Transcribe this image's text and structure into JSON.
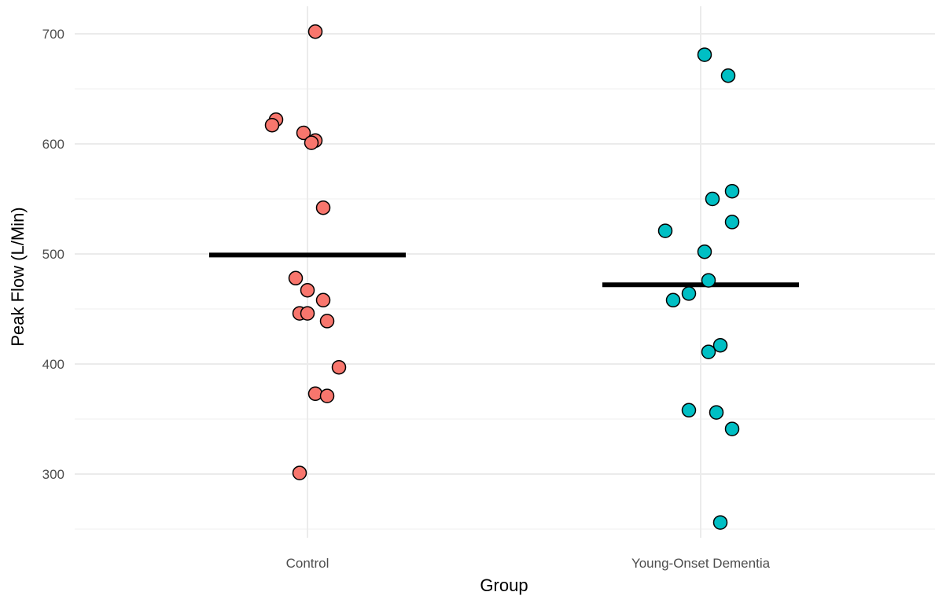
{
  "chart_data": {
    "type": "scatter",
    "subtype": "jittered strip plot with group mean lines",
    "xlabel": "Group",
    "ylabel": "Peak Flow (L/Min)",
    "categories": [
      "Control",
      "Young-Onset Dementia"
    ],
    "ylim": [
      247,
      715
    ],
    "yticks": [
      300,
      400,
      500,
      600,
      700
    ],
    "grid": true,
    "legend": "none",
    "point_style": {
      "outline": "#000000"
    },
    "series": [
      {
        "category": "Control",
        "color": "#F8766D",
        "mean": 499,
        "points": [
          {
            "jitter": 0.02,
            "y": 702
          },
          {
            "jitter": -0.08,
            "y": 622
          },
          {
            "jitter": -0.09,
            "y": 617
          },
          {
            "jitter": -0.01,
            "y": 610
          },
          {
            "jitter": 0.02,
            "y": 603
          },
          {
            "jitter": 0.01,
            "y": 601
          },
          {
            "jitter": 0.04,
            "y": 542
          },
          {
            "jitter": -0.03,
            "y": 478
          },
          {
            "jitter": 0.0,
            "y": 467
          },
          {
            "jitter": 0.04,
            "y": 458
          },
          {
            "jitter": -0.02,
            "y": 446
          },
          {
            "jitter": 0.0,
            "y": 446
          },
          {
            "jitter": 0.05,
            "y": 439
          },
          {
            "jitter": 0.08,
            "y": 397
          },
          {
            "jitter": 0.02,
            "y": 373
          },
          {
            "jitter": 0.05,
            "y": 371
          },
          {
            "jitter": -0.02,
            "y": 301
          }
        ]
      },
      {
        "category": "Young-Onset Dementia",
        "color": "#00BFC4",
        "mean": 472,
        "points": [
          {
            "jitter": 0.01,
            "y": 681
          },
          {
            "jitter": 0.07,
            "y": 662
          },
          {
            "jitter": 0.08,
            "y": 557
          },
          {
            "jitter": 0.03,
            "y": 550
          },
          {
            "jitter": 0.08,
            "y": 529
          },
          {
            "jitter": -0.09,
            "y": 521
          },
          {
            "jitter": 0.01,
            "y": 502
          },
          {
            "jitter": 0.02,
            "y": 476
          },
          {
            "jitter": -0.03,
            "y": 464
          },
          {
            "jitter": -0.07,
            "y": 458
          },
          {
            "jitter": 0.05,
            "y": 417
          },
          {
            "jitter": 0.02,
            "y": 411
          },
          {
            "jitter": -0.03,
            "y": 358
          },
          {
            "jitter": 0.04,
            "y": 356
          },
          {
            "jitter": 0.08,
            "y": 341
          },
          {
            "jitter": 0.05,
            "y": 256
          }
        ]
      }
    ]
  }
}
